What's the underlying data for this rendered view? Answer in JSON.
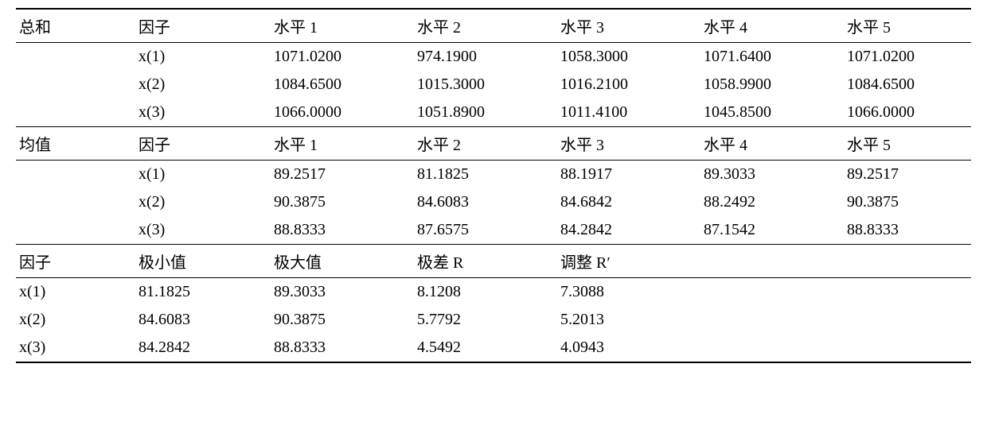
{
  "table": {
    "section1": {
      "header": [
        "总和",
        "因子",
        "水平 1",
        "水平 2",
        "水平 3",
        "水平 4",
        "水平 5"
      ],
      "rows": [
        [
          "",
          "x(1)",
          "1071.0200",
          "974.1900",
          "1058.3000",
          "1071.6400",
          "1071.0200"
        ],
        [
          "",
          "x(2)",
          "1084.6500",
          "1015.3000",
          "1016.2100",
          "1058.9900",
          "1084.6500"
        ],
        [
          "",
          "x(3)",
          "1066.0000",
          "1051.8900",
          "1011.4100",
          "1045.8500",
          "1066.0000"
        ]
      ]
    },
    "section2": {
      "header": [
        "均值",
        "因子",
        "水平 1",
        "水平 2",
        "水平 3",
        "水平 4",
        "水平 5"
      ],
      "rows": [
        [
          "",
          "x(1)",
          "89.2517",
          "81.1825",
          "88.1917",
          "89.3033",
          "89.2517"
        ],
        [
          "",
          "x(2)",
          "90.3875",
          "84.6083",
          "84.6842",
          "88.2492",
          "90.3875"
        ],
        [
          "",
          "x(3)",
          "88.8333",
          "87.6575",
          "84.2842",
          "87.1542",
          "88.8333"
        ]
      ]
    },
    "section3": {
      "header": [
        "因子",
        "极小值",
        "极大值",
        "极差 R",
        "调整 R′",
        "",
        ""
      ],
      "rows": [
        [
          "x(1)",
          "81.1825",
          "89.3033",
          "8.1208",
          "7.3088",
          "",
          ""
        ],
        [
          "x(2)",
          "84.6083",
          "90.3875",
          "5.7792",
          "5.2013",
          "",
          ""
        ],
        [
          "x(3)",
          "84.2842",
          "88.8333",
          "4.5492",
          "4.0943",
          "",
          ""
        ]
      ]
    }
  }
}
